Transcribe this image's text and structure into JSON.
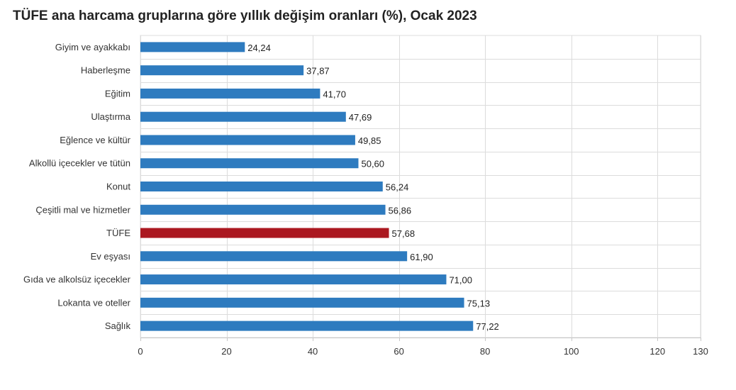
{
  "title": "TÜFE ana harcama gruplarına göre yıllık değişim oranları (%), Ocak 2023",
  "chart_data": {
    "type": "bar",
    "orientation": "horizontal",
    "title": "TÜFE ana harcama gruplarına göre yıllık değişim oranları (%), Ocak 2023",
    "xlabel": "",
    "ylabel": "",
    "xlim": [
      0,
      130
    ],
    "x_ticks": [
      "0",
      "20",
      "40",
      "60",
      "80",
      "100",
      "120",
      "130"
    ],
    "x_tick_values": [
      0,
      20,
      40,
      60,
      80,
      100,
      120,
      130
    ],
    "grid": true,
    "legend": "none",
    "categories": [
      "Giyim ve ayakkabı",
      "Haberleşme",
      "Eğitim",
      "Ulaştırma",
      "Eğlence ve kültür",
      "Alkollü içecekler ve tütün",
      "Konut",
      "Çeşitli mal ve hizmetler",
      "TÜFE",
      "Ev eşyası",
      "Gıda ve alkolsüz içecekler",
      "Lokanta ve oteller",
      "Sağlık"
    ],
    "values": [
      24.24,
      37.87,
      41.7,
      47.69,
      49.85,
      50.6,
      56.24,
      56.86,
      57.68,
      61.9,
      71.0,
      75.13,
      77.22
    ],
    "value_labels": [
      "24,24",
      "37,87",
      "41,70",
      "47,69",
      "49,85",
      "50,60",
      "56,24",
      "56,86",
      "57,68",
      "61,90",
      "71,00",
      "75,13",
      "77,22"
    ],
    "highlight_category": "TÜFE",
    "colors": {
      "bar": "#2e7bbf",
      "highlight": "#ab1820",
      "grid": "#dcdcdc",
      "axis": "#c8c8c8",
      "text": "#333333"
    }
  }
}
